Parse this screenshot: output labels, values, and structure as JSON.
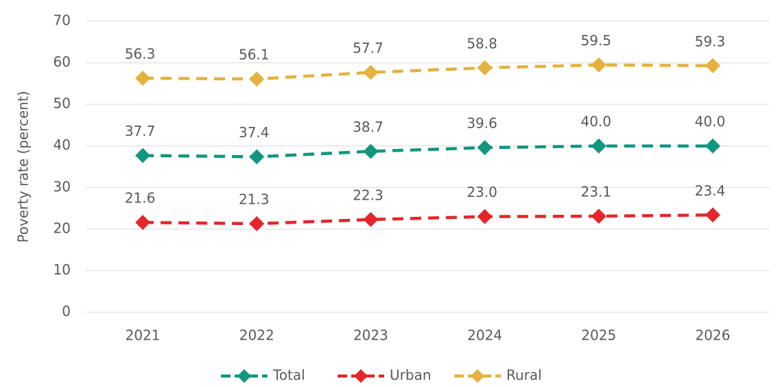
{
  "chart_data": {
    "type": "line",
    "y_label": "Poverty rate (percent)",
    "categories": [
      "2021",
      "2022",
      "2023",
      "2024",
      "2025",
      "2026"
    ],
    "series": [
      {
        "name": "Total",
        "color": "#12967f",
        "values": [
          37.7,
          37.4,
          38.7,
          39.6,
          40,
          40
        ],
        "value_labels": [
          "37.7",
          "37.4",
          "38.7",
          "39.6",
          "40.0",
          "40.0"
        ]
      },
      {
        "name": "Urban",
        "color": "#e3262b",
        "values": [
          21.6,
          21.3,
          22.3,
          23,
          23.1,
          23.4
        ],
        "value_labels": [
          "21.6",
          "21.3",
          "22.3",
          "23.0",
          "23.1",
          "23.4"
        ]
      },
      {
        "name": "Rural",
        "color": "#e4b23d",
        "values": [
          56.3,
          56.1,
          57.7,
          58.8,
          59.5,
          59.3
        ],
        "value_labels": [
          "56.3",
          "56.1",
          "57.7",
          "58.8",
          "59.5",
          "59.3"
        ]
      }
    ],
    "ylim": [
      0,
      70
    ],
    "yticks": [
      0,
      10,
      20,
      30,
      40,
      50,
      60,
      70
    ],
    "grid": true,
    "legend": "bottom"
  }
}
